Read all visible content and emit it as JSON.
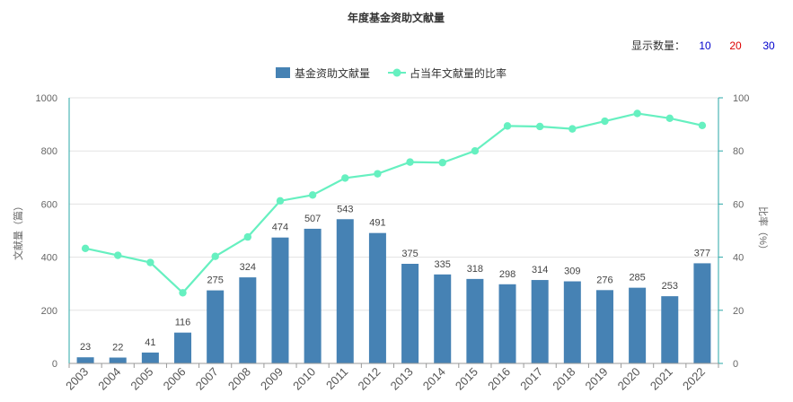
{
  "chart_data": {
    "type": "bar",
    "title": "年度基金资助文献量",
    "categories": [
      "2003",
      "2004",
      "2005",
      "2006",
      "2007",
      "2008",
      "2009",
      "2010",
      "2011",
      "2012",
      "2013",
      "2014",
      "2015",
      "2016",
      "2017",
      "2018",
      "2019",
      "2020",
      "2021",
      "2022"
    ],
    "series": [
      {
        "name": "基金资助文献量",
        "type": "bar",
        "axis": "left",
        "color": "#4682b4",
        "values": [
          23,
          22,
          41,
          116,
          275,
          324,
          474,
          507,
          543,
          491,
          375,
          335,
          318,
          298,
          314,
          309,
          276,
          285,
          253,
          377
        ]
      },
      {
        "name": "占当年文献量的比率",
        "type": "line",
        "axis": "right",
        "color": "#66f0c0",
        "values": [
          43.3,
          40.7,
          38.0,
          26.6,
          40.3,
          47.6,
          61.2,
          63.4,
          69.8,
          71.4,
          75.8,
          75.6,
          80.0,
          89.4,
          89.2,
          88.3,
          91.2,
          94.1,
          92.3,
          89.6
        ]
      }
    ],
    "ylabel": "文献量（篇）",
    "ylim": [
      0,
      1000
    ],
    "yticks": [
      0,
      200,
      400,
      600,
      800,
      1000
    ],
    "y2label": "比率（%）",
    "y2lim": [
      0,
      100
    ],
    "y2ticks": [
      0,
      20,
      40,
      60,
      80,
      100
    ],
    "grid": true,
    "legend_position": "top-center"
  },
  "display_count": {
    "label": "显示数量：",
    "options": [
      {
        "label": "10",
        "color": "#0000cc"
      },
      {
        "label": "20",
        "color": "#dd0000"
      },
      {
        "label": "30",
        "color": "#0000cc"
      }
    ]
  }
}
